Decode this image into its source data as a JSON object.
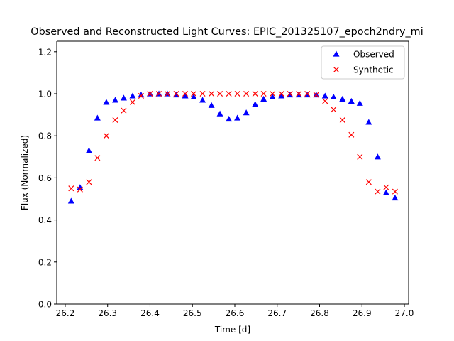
{
  "chart_data": {
    "type": "scatter",
    "title": "Observed and Reconstructed Light Curves: EPIC_201325107_epoch2ndry_mi",
    "xlabel": "Time [d]",
    "ylabel": "Flux (Normalized)",
    "xlim": [
      26.18,
      27.01
    ],
    "ylim": [
      0.0,
      1.25
    ],
    "xticks": [
      26.2,
      26.3,
      26.4,
      26.5,
      26.6,
      26.7,
      26.8,
      26.9,
      27.0
    ],
    "xtick_labels": [
      "26.2",
      "26.3",
      "26.4",
      "26.5",
      "26.6",
      "26.7",
      "26.8",
      "26.9",
      "27.0"
    ],
    "yticks": [
      0.0,
      0.2,
      0.4,
      0.6,
      0.8,
      1.0,
      1.2
    ],
    "ytick_labels": [
      "0.0",
      "0.2",
      "0.4",
      "0.6",
      "0.8",
      "1.0",
      "1.2"
    ],
    "grid": false,
    "legend_position": "top-right",
    "series": [
      {
        "name": "Observed",
        "marker": "triangle",
        "color": "#0000ff",
        "x": [
          26.214,
          26.235,
          26.256,
          26.276,
          26.297,
          26.318,
          26.338,
          26.359,
          26.379,
          26.4,
          26.421,
          26.441,
          26.462,
          26.483,
          26.503,
          26.524,
          26.545,
          26.565,
          26.586,
          26.606,
          26.627,
          26.648,
          26.668,
          26.689,
          26.71,
          26.73,
          26.751,
          26.771,
          26.792,
          26.813,
          26.833,
          26.854,
          26.875,
          26.895,
          26.916,
          26.937,
          26.957,
          26.978
        ],
        "y": [
          0.49,
          0.555,
          0.73,
          0.885,
          0.96,
          0.97,
          0.98,
          0.99,
          0.995,
          1.0,
          1.0,
          1.0,
          0.995,
          0.99,
          0.985,
          0.97,
          0.945,
          0.905,
          0.88,
          0.885,
          0.91,
          0.95,
          0.975,
          0.985,
          0.99,
          0.995,
          0.995,
          0.995,
          0.995,
          0.99,
          0.985,
          0.975,
          0.965,
          0.955,
          0.865,
          0.7,
          0.53,
          0.505
        ]
      },
      {
        "name": "Synthetic",
        "marker": "x",
        "color": "#ff0000",
        "x": [
          26.214,
          26.235,
          26.256,
          26.276,
          26.297,
          26.318,
          26.338,
          26.359,
          26.379,
          26.4,
          26.421,
          26.441,
          26.462,
          26.483,
          26.503,
          26.524,
          26.545,
          26.565,
          26.586,
          26.606,
          26.627,
          26.648,
          26.668,
          26.689,
          26.71,
          26.73,
          26.751,
          26.771,
          26.792,
          26.813,
          26.833,
          26.854,
          26.875,
          26.895,
          26.916,
          26.937,
          26.957,
          26.978
        ],
        "y": [
          0.55,
          0.545,
          0.58,
          0.695,
          0.8,
          0.875,
          0.92,
          0.96,
          0.99,
          1.0,
          1.0,
          1.0,
          1.0,
          1.0,
          1.0,
          1.0,
          1.0,
          1.0,
          1.0,
          1.0,
          1.0,
          1.0,
          1.0,
          1.0,
          1.0,
          1.0,
          1.0,
          1.0,
          0.995,
          0.965,
          0.925,
          0.875,
          0.805,
          0.7,
          0.58,
          0.535,
          0.555,
          0.535
        ]
      }
    ]
  }
}
